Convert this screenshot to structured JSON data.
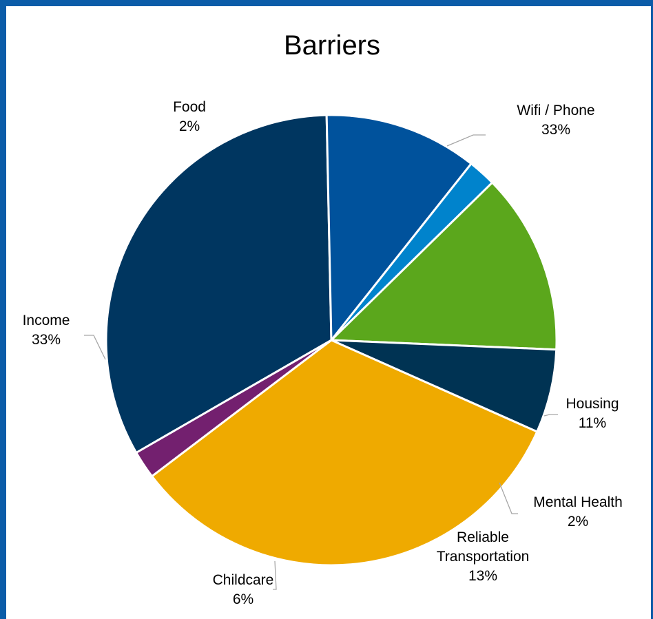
{
  "chart_data": {
    "type": "pie",
    "title": "Barriers",
    "slices": [
      {
        "name": "Wifi / Phone",
        "label": "33%",
        "value": 33,
        "color": "#003660"
      },
      {
        "name": "Housing",
        "label": "11%",
        "value": 11,
        "color": "#00529c"
      },
      {
        "name": "Mental Health",
        "label": "2%",
        "value": 2,
        "color": "#0083cc"
      },
      {
        "name": "Reliable Transportation",
        "label": "13%",
        "value": 13,
        "color": "#5ba71c"
      },
      {
        "name": "Childcare",
        "label": "6%",
        "value": 6,
        "color": "#003353"
      },
      {
        "name": "Income",
        "label": "33%",
        "value": 33,
        "color": "#efaa00"
      },
      {
        "name": "Food",
        "label": "2%",
        "value": 2,
        "color": "#73206f"
      }
    ],
    "legend": "none",
    "border_color": "#0b5ca8"
  }
}
